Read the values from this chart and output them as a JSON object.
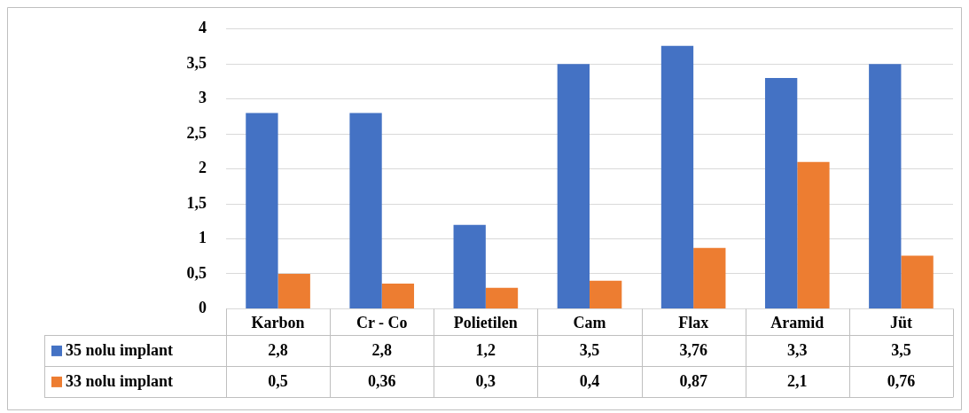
{
  "chart_data": {
    "type": "bar",
    "categories": [
      "Karbon",
      "Cr - Co",
      "Polietilen",
      "Cam",
      "Flax",
      "Aramid",
      "Jüt"
    ],
    "series": [
      {
        "name": "35 nolu implant",
        "color": "#4472c4",
        "values": [
          2.8,
          2.8,
          1.2,
          3.5,
          3.76,
          3.3,
          3.5
        ],
        "value_labels": [
          "2,8",
          "2,8",
          "1,2",
          "3,5",
          "3,76",
          "3,3",
          "3,5"
        ]
      },
      {
        "name": "33 nolu implant",
        "color": "#ed7d31",
        "values": [
          0.5,
          0.36,
          0.3,
          0.4,
          0.87,
          2.1,
          0.76
        ],
        "value_labels": [
          "0,5",
          "0,36",
          "0,3",
          "0,4",
          "0,87",
          "2,1",
          "0,76"
        ]
      }
    ],
    "ylim": [
      0,
      4
    ],
    "yticks": [
      0,
      {
        "value": 0.5,
        "label": "0,5"
      },
      1,
      {
        "value": 1.5,
        "label": "1,5"
      },
      2,
      {
        "value": 2.5,
        "label": "2,5"
      },
      3,
      {
        "value": 3.5,
        "label": "3,5"
      },
      4
    ],
    "grid": "y",
    "legend": "bottom"
  }
}
